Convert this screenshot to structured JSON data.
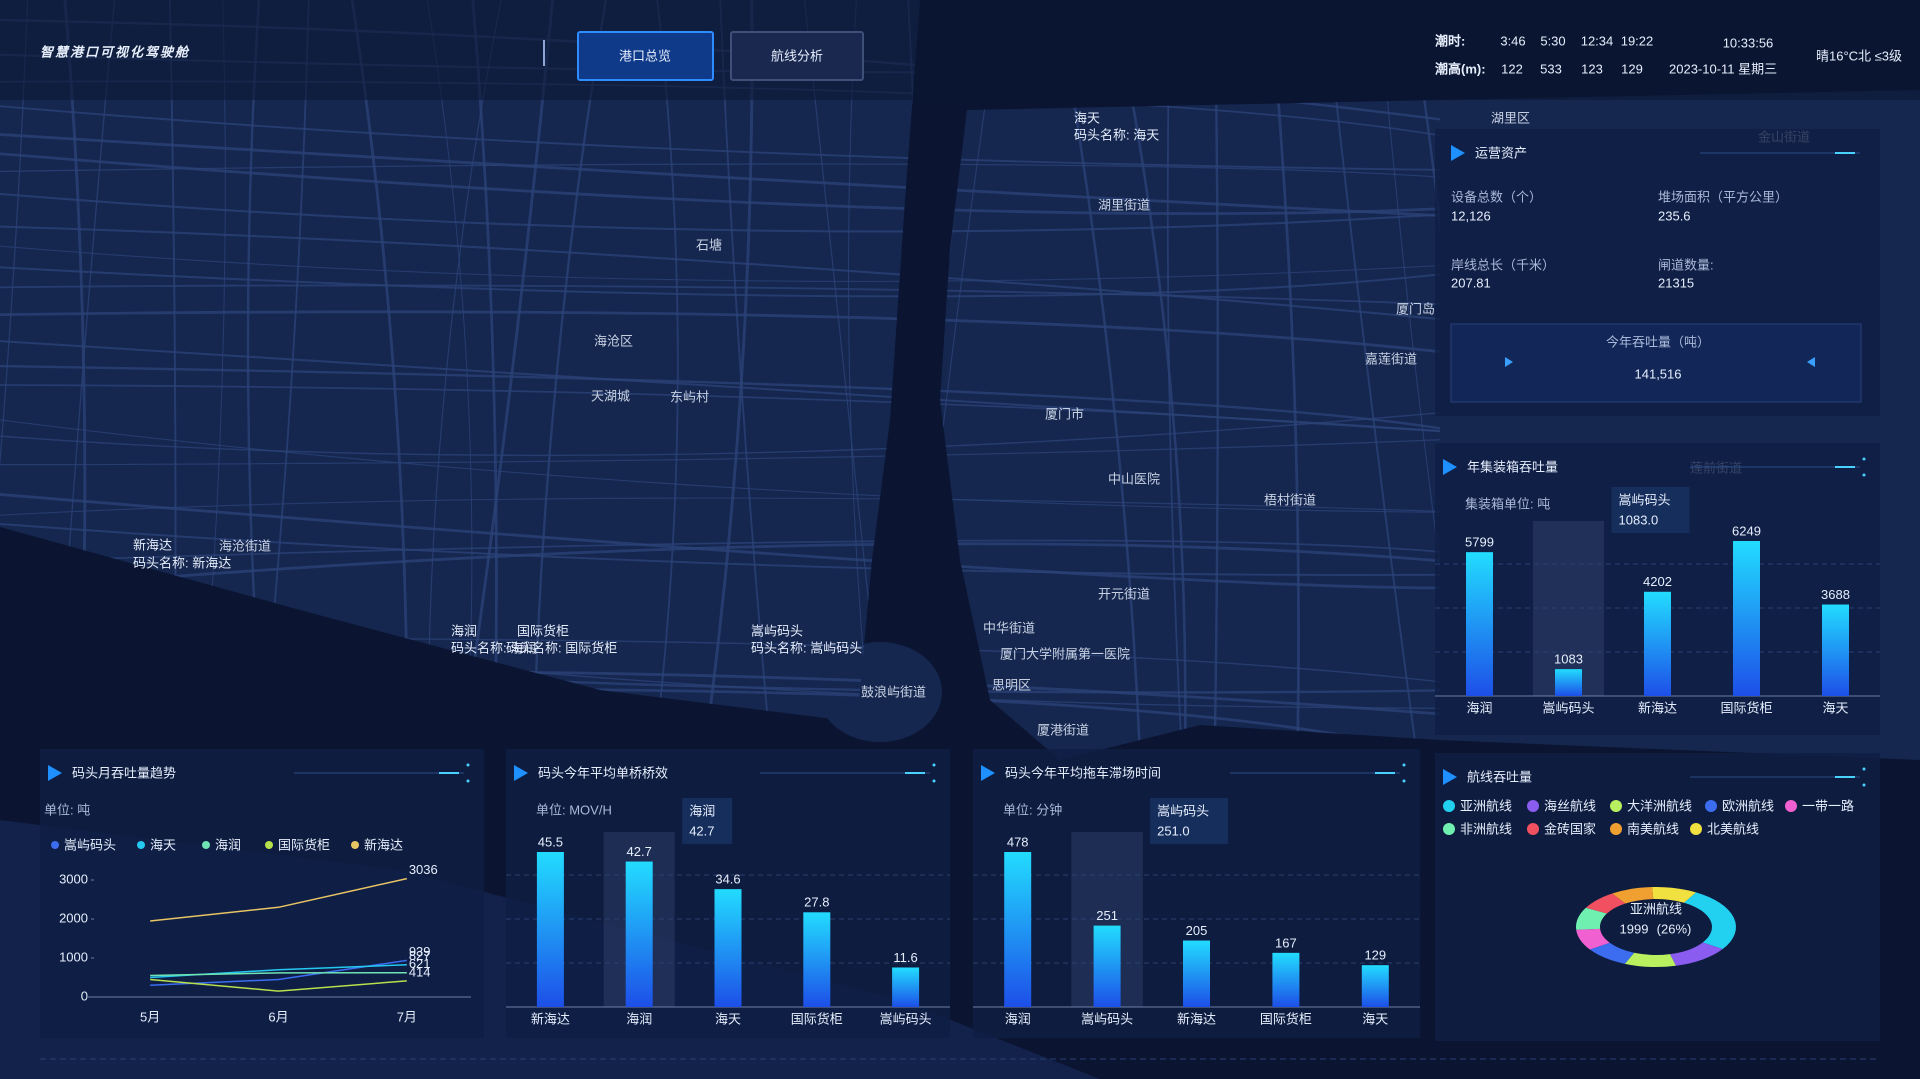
{
  "header": {
    "title": "智慧港口可视化驾驶舱",
    "tabs": [
      "港口总览",
      "航线分析"
    ]
  },
  "tide": {
    "time_label": "潮时:",
    "times": [
      "3:46",
      "5:30",
      "12:34",
      "19:22"
    ],
    "height_label": "潮高(m):",
    "heights": [
      122,
      533,
      123,
      129
    ]
  },
  "clock": {
    "time": "10:33:56",
    "date": "2023-10-11 星期三",
    "weather": "晴16°C北 ≤3级"
  },
  "map": {
    "ports": [
      {
        "name": "海天",
        "caption": "码头名称: 海天"
      },
      {
        "name": "新海达",
        "caption": "码头名称: 新海达"
      },
      {
        "name": "海润",
        "caption": "码头名称: 海润"
      },
      {
        "name": "国际货柜",
        "caption": "码头名称: 国际货柜"
      },
      {
        "name": "嵩屿码头",
        "caption": "码头名称: 嵩屿码头"
      }
    ],
    "places": [
      "湖里区",
      "湖里街道",
      "海沧区",
      "厦门市",
      "思明区",
      "鼓浪屿街道",
      "厦门岛",
      "嘉莲街道",
      "梧村街道",
      "开元街道",
      "中华街道",
      "厦港街道",
      "海沧街道",
      "中山医院",
      "厦门大学附属第一医院",
      "东屿村",
      "天湖城",
      "石塘",
      "金山街道",
      "莲前街道"
    ]
  },
  "assets": {
    "title": "运营资产",
    "items": [
      {
        "label": "设备总数（个）",
        "value": "12,126"
      },
      {
        "label": "堆场面积（平方公里）",
        "value": "235.6"
      },
      {
        "label": "岸线总长（千米）",
        "value": "207.81"
      },
      {
        "label": "闸道数量:",
        "value": "21315"
      }
    ],
    "total": {
      "label": "今年吞吐量（吨）",
      "value": "141,516"
    }
  },
  "chart_data": [
    {
      "type": "line",
      "title": "码头月吞吐量趋势",
      "unit": "单位: 吨",
      "categories": [
        "5月",
        "6月",
        "7月"
      ],
      "series": [
        {
          "name": "嵩屿码头",
          "color": "#3a6df0",
          "values": [
            300,
            450,
            939
          ]
        },
        {
          "name": "海天",
          "color": "#25c8f0",
          "values": [
            500,
            700,
            827
          ]
        },
        {
          "name": "海润",
          "color": "#6fe3b4",
          "values": [
            550,
            620,
            621
          ]
        },
        {
          "name": "国际货柜",
          "color": "#b7e04c",
          "values": [
            450,
            150,
            414
          ]
        },
        {
          "name": "新海达",
          "color": "#e8c464",
          "values": [
            1950,
            2300,
            3036
          ]
        }
      ],
      "ylim": [
        0,
        3000
      ],
      "yticks": [
        0,
        1000,
        2000,
        3000
      ]
    },
    {
      "type": "bar",
      "title": "码头今年平均单桥桥效",
      "unit": "单位: MOV/H",
      "categories": [
        "新海达",
        "海润",
        "海天",
        "国际货柜",
        "嵩屿码头"
      ],
      "values": [
        45.5,
        42.7,
        34.6,
        27.8,
        11.6
      ],
      "gradient": [
        "#22dcff",
        "#1d4fe8"
      ],
      "tooltip": {
        "name": "海润",
        "label": "42.7"
      }
    },
    {
      "type": "bar",
      "title": "码头今年平均拖车滞场时间",
      "unit": "单位: 分钟",
      "categories": [
        "海润",
        "嵩屿码头",
        "新海达",
        "国际货柜",
        "海天"
      ],
      "values": [
        478,
        251,
        205,
        167,
        129
      ],
      "gradient": [
        "#22dcff",
        "#1d4fe8"
      ],
      "tooltip": {
        "name": "嵩屿码头",
        "label": "251.0"
      }
    },
    {
      "type": "bar",
      "title": "年集装箱吞吐量",
      "unit": "集装箱单位: 吨",
      "categories": [
        "海润",
        "嵩屿码头",
        "新海达",
        "国际货柜",
        "海天"
      ],
      "values": [
        5799,
        1083,
        4202,
        6249,
        3688
      ],
      "gradient": [
        "#22dcff",
        "#1d4fe8"
      ],
      "tooltip": {
        "name": "嵩屿码头",
        "label": "1083.0"
      }
    },
    {
      "type": "pie",
      "title": "航线吞吐量",
      "categories": [
        "亚洲航线",
        "海丝航线",
        "大洋洲航线",
        "欧洲航线",
        "一带一路",
        "非洲航线",
        "金砖国家",
        "南美航线",
        "北美航线"
      ],
      "values": [
        1999,
        900,
        800,
        700,
        650,
        700,
        600,
        650,
        700
      ],
      "colors": [
        "#22d0f0",
        "#8a5cf0",
        "#b8f060",
        "#3c6cf0",
        "#f060d0",
        "#70f0b0",
        "#f05060",
        "#f0a030",
        "#f0e040"
      ],
      "tooltip": {
        "name": "亚洲航线",
        "label": "1999",
        "percent": "(26%)"
      }
    }
  ]
}
